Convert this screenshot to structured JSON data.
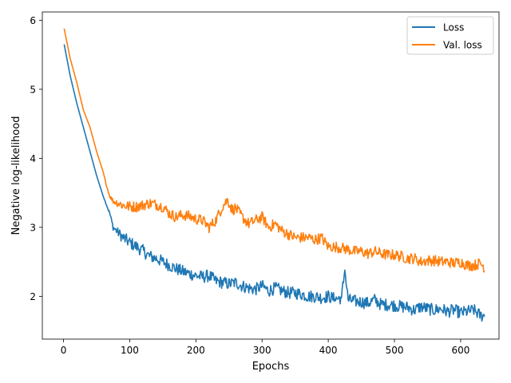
{
  "chart_data": {
    "type": "line",
    "xlabel": "Epochs",
    "ylabel": "Negative log-likelihood",
    "xlim": [
      -32,
      658
    ],
    "ylim": [
      1.38,
      6.12
    ],
    "xticks": [
      0,
      100,
      200,
      300,
      400,
      500,
      600
    ],
    "yticks": [
      2,
      3,
      4,
      5,
      6
    ],
    "grid": false,
    "legend_position": "top-right",
    "series": [
      {
        "name": "Loss",
        "color": "#1f77b4",
        "x": [
          1,
          10,
          20,
          30,
          40,
          50,
          60,
          70,
          75,
          80,
          90,
          100,
          110,
          120,
          130,
          140,
          150,
          160,
          170,
          180,
          190,
          200,
          210,
          220,
          230,
          240,
          250,
          260,
          270,
          280,
          290,
          300,
          310,
          320,
          330,
          340,
          350,
          360,
          370,
          380,
          390,
          400,
          410,
          420,
          425,
          430,
          440,
          450,
          460,
          470,
          480,
          490,
          500,
          510,
          520,
          530,
          540,
          550,
          560,
          570,
          580,
          590,
          600,
          610,
          620,
          630,
          636
        ],
        "y": [
          5.65,
          5.2,
          4.8,
          4.45,
          4.1,
          3.75,
          3.45,
          3.2,
          3.0,
          2.95,
          2.85,
          2.78,
          2.72,
          2.66,
          2.58,
          2.55,
          2.5,
          2.45,
          2.4,
          2.36,
          2.33,
          2.3,
          2.28,
          2.3,
          2.22,
          2.2,
          2.18,
          2.2,
          2.15,
          2.12,
          2.1,
          2.15,
          2.08,
          2.12,
          2.08,
          2.05,
          2.05,
          2.03,
          2.0,
          2.0,
          1.98,
          2.0,
          1.96,
          1.98,
          2.38,
          1.95,
          1.93,
          1.92,
          1.9,
          1.95,
          1.88,
          1.88,
          1.87,
          1.85,
          1.84,
          1.8,
          1.85,
          1.82,
          1.8,
          1.82,
          1.78,
          1.8,
          1.76,
          1.78,
          1.8,
          1.72,
          1.72
        ]
      },
      {
        "name": "Val. loss",
        "color": "#ff7f0e",
        "x": [
          1,
          10,
          20,
          30,
          40,
          50,
          60,
          65,
          70,
          75,
          80,
          90,
          100,
          110,
          120,
          130,
          140,
          150,
          160,
          170,
          180,
          190,
          200,
          210,
          220,
          230,
          240,
          248,
          255,
          260,
          270,
          280,
          290,
          300,
          310,
          320,
          330,
          340,
          350,
          360,
          370,
          380,
          390,
          400,
          410,
          420,
          430,
          440,
          450,
          460,
          470,
          480,
          490,
          500,
          510,
          520,
          530,
          540,
          550,
          560,
          570,
          580,
          590,
          600,
          610,
          620,
          630,
          636
        ],
        "y": [
          5.88,
          5.45,
          5.1,
          4.7,
          4.45,
          4.1,
          3.8,
          3.6,
          3.45,
          3.38,
          3.36,
          3.32,
          3.3,
          3.3,
          3.32,
          3.35,
          3.33,
          3.3,
          3.2,
          3.15,
          3.18,
          3.16,
          3.12,
          3.1,
          3.0,
          3.1,
          3.3,
          3.4,
          3.25,
          3.28,
          3.15,
          3.05,
          3.1,
          3.15,
          3.0,
          3.05,
          2.95,
          2.9,
          2.85,
          2.85,
          2.85,
          2.82,
          2.85,
          2.72,
          2.72,
          2.7,
          2.68,
          2.65,
          2.65,
          2.62,
          2.65,
          2.62,
          2.6,
          2.6,
          2.58,
          2.55,
          2.55,
          2.5,
          2.52,
          2.52,
          2.5,
          2.5,
          2.48,
          2.5,
          2.45,
          2.45,
          2.48,
          2.42
        ]
      }
    ],
    "noise_amplitude": [
      0.09,
      0.08
    ]
  }
}
